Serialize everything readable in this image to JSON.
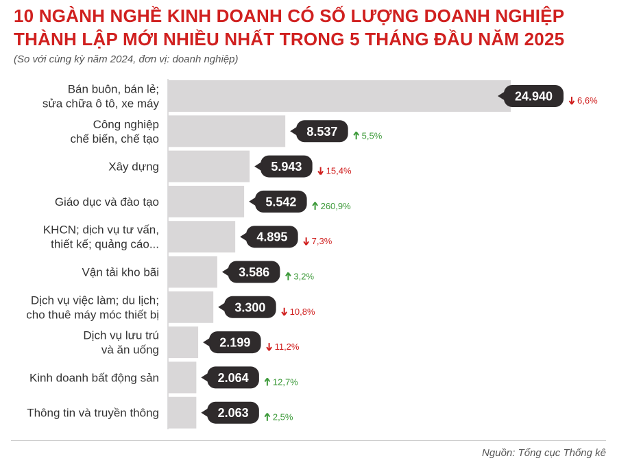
{
  "header": {
    "title_line1": "10 NGÀNH NGHỀ KINH DOANH CÓ SỐ LƯỢNG DOANH NGHIỆP",
    "title_line2": "THÀNH LẬP MỚI NHIỀU NHẤT TRONG 5 THÁNG ĐẦU NĂM 2025",
    "subtitle": "(So với cùng kỳ năm 2024, đơn vị: doanh nghiệp)"
  },
  "footer": {
    "source": "Nguồn: Tổng cục Thống kê"
  },
  "colors": {
    "title": "#d0201f",
    "bar": "#d9d7d8",
    "bubble": "#2f2b2c",
    "bubble_text": "#ffffff",
    "up": "#3d9a3a",
    "down": "#d0201f",
    "label": "#333333"
  },
  "chart_data": {
    "type": "bar",
    "orientation": "horizontal",
    "categories": [
      [
        "Bán buôn, bán lẻ;",
        "sửa chữa ô tô, xe máy"
      ],
      [
        "Công nghiệp",
        "chế biến, chế tạo"
      ],
      [
        "Xây dựng"
      ],
      [
        "Giáo dục và đào tạo"
      ],
      [
        "KHCN; dịch vụ tư vấn,",
        "thiết kế; quảng cáo..."
      ],
      [
        "Vận tải kho bãi"
      ],
      [
        "Dịch vụ việc làm; du lịch;",
        "cho thuê máy móc thiết bị"
      ],
      [
        "Dịch vụ lưu trú",
        "và ăn uống"
      ],
      [
        "Kinh doanh bất động sản"
      ],
      [
        "Thông tin và truyền thông"
      ]
    ],
    "values": [
      24940,
      8537,
      5943,
      5542,
      4895,
      3586,
      3300,
      2199,
      2064,
      2063
    ],
    "value_labels": [
      "24.940",
      "8.537",
      "5.943",
      "5.542",
      "4.895",
      "3.586",
      "3.300",
      "2.199",
      "2.064",
      "2.063"
    ],
    "changes": [
      {
        "direction": "down",
        "label": "6,6%"
      },
      {
        "direction": "up",
        "label": "5,5%"
      },
      {
        "direction": "down",
        "label": "15,4%"
      },
      {
        "direction": "up",
        "label": "260,9%"
      },
      {
        "direction": "down",
        "label": "7,3%"
      },
      {
        "direction": "up",
        "label": "3,2%"
      },
      {
        "direction": "down",
        "label": "10,8%"
      },
      {
        "direction": "down",
        "label": "11,2%"
      },
      {
        "direction": "up",
        "label": "12,7%"
      },
      {
        "direction": "up",
        "label": "2,5%"
      }
    ],
    "xlim": [
      0,
      24940
    ],
    "grid": false,
    "legend": "none"
  }
}
